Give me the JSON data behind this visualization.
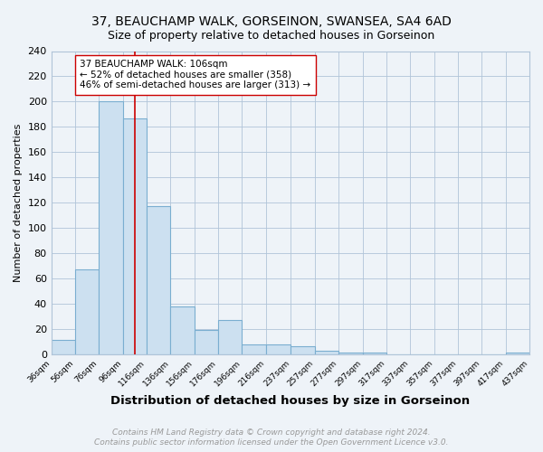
{
  "title": "37, BEAUCHAMP WALK, GORSEINON, SWANSEA, SA4 6AD",
  "subtitle": "Size of property relative to detached houses in Gorseinon",
  "xlabel": "Distribution of detached houses by size in Gorseinon",
  "ylabel": "Number of detached properties",
  "bar_edges": [
    36,
    56,
    76,
    96,
    116,
    136,
    156,
    176,
    196,
    216,
    237,
    257,
    277,
    297,
    317,
    337,
    357,
    377,
    397,
    417,
    437
  ],
  "bar_heights": [
    11,
    67,
    200,
    187,
    117,
    38,
    19,
    27,
    8,
    8,
    6,
    3,
    1,
    1,
    0,
    0,
    0,
    0,
    0,
    1
  ],
  "bar_color": "#cce0f0",
  "bar_edgecolor": "#7aaed0",
  "property_size": 106,
  "vline_color": "#cc0000",
  "annotation_text": "37 BEAUCHAMP WALK: 106sqm\n← 52% of detached houses are smaller (358)\n46% of semi-detached houses are larger (313) →",
  "annotation_fontsize": 7.5,
  "annotation_box_edgecolor": "#cc0000",
  "annotation_box_facecolor": "#ffffff",
  "ylim": [
    0,
    240
  ],
  "yticks": [
    0,
    20,
    40,
    60,
    80,
    100,
    120,
    140,
    160,
    180,
    200,
    220,
    240
  ],
  "title_fontsize": 10,
  "subtitle_fontsize": 9,
  "xlabel_fontsize": 9.5,
  "ylabel_fontsize": 8,
  "footer_line1": "Contains HM Land Registry data © Crown copyright and database right 2024.",
  "footer_line2": "Contains public sector information licensed under the Open Government Licence v3.0.",
  "footer_fontsize": 6.5,
  "footer_color": "#999999",
  "background_color": "#eef3f8",
  "plot_bg_color": "#eef3f8",
  "grid_color": "#b0c4d8",
  "tick_labels": [
    "36sqm",
    "56sqm",
    "76sqm",
    "96sqm",
    "116sqm",
    "136sqm",
    "156sqm",
    "176sqm",
    "196sqm",
    "216sqm",
    "237sqm",
    "257sqm",
    "277sqm",
    "297sqm",
    "317sqm",
    "337sqm",
    "357sqm",
    "377sqm",
    "397sqm",
    "417sqm",
    "437sqm"
  ]
}
